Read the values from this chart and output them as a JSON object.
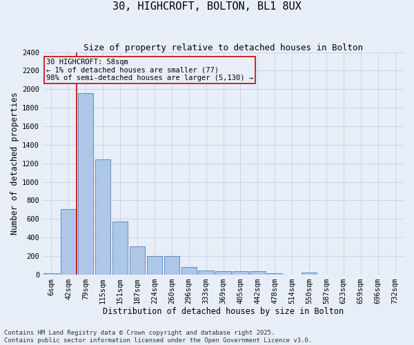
{
  "title": "30, HIGHCROFT, BOLTON, BL1 8UX",
  "subtitle": "Size of property relative to detached houses in Bolton",
  "xlabel": "Distribution of detached houses by size in Bolton",
  "ylabel": "Number of detached properties",
  "categories": [
    "6sqm",
    "42sqm",
    "79sqm",
    "115sqm",
    "151sqm",
    "187sqm",
    "224sqm",
    "260sqm",
    "296sqm",
    "333sqm",
    "369sqm",
    "405sqm",
    "442sqm",
    "478sqm",
    "514sqm",
    "550sqm",
    "587sqm",
    "623sqm",
    "659sqm",
    "696sqm",
    "732sqm"
  ],
  "values": [
    15,
    710,
    1960,
    1240,
    575,
    305,
    200,
    200,
    80,
    45,
    35,
    35,
    35,
    15,
    0,
    20,
    0,
    0,
    0,
    0,
    0
  ],
  "bar_color": "#aec6e8",
  "bar_edge_color": "#5a8fc2",
  "annotation_line_color": "#cc0000",
  "annotation_box_text": "30 HIGHCROFT: 58sqm\n← 1% of detached houses are smaller (77)\n98% of semi-detached houses are larger (5,130) →",
  "annotation_box_color": "#cc0000",
  "ylim": [
    0,
    2400
  ],
  "yticks": [
    0,
    200,
    400,
    600,
    800,
    1000,
    1200,
    1400,
    1600,
    1800,
    2000,
    2200,
    2400
  ],
  "grid_color": "#c8d4e8",
  "bg_color": "#e8eef8",
  "footnote": "Contains HM Land Registry data © Crown copyright and database right 2025.\nContains public sector information licensed under the Open Government Licence v3.0.",
  "title_fontsize": 11,
  "subtitle_fontsize": 9,
  "xlabel_fontsize": 8.5,
  "ylabel_fontsize": 8.5,
  "footnote_fontsize": 6.5,
  "tick_fontsize": 7.5,
  "annot_fontsize": 7.5
}
